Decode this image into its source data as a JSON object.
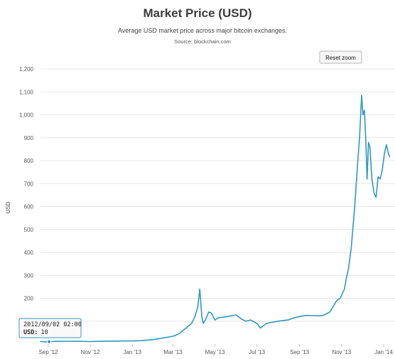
{
  "chart_data": {
    "type": "line",
    "title": "Market Price (USD)",
    "subtitle": "Average USD market price across major bitcoin exchanges.",
    "source": "Source: blockchain.com",
    "ylabel": "USD",
    "ylim": [
      0,
      1200
    ],
    "y_ticks": [
      100,
      200,
      300,
      400,
      500,
      600,
      700,
      800,
      900,
      1000,
      1100,
      1200
    ],
    "y_tick_labels": [
      "100",
      "200",
      "300",
      "400",
      "500",
      "600",
      "700",
      "800",
      "900",
      "1,000",
      "1,100",
      "1,200"
    ],
    "x_ticks": [
      "2012-09-01",
      "2012-11-01",
      "2013-01-01",
      "2013-03-01",
      "2013-05-01",
      "2013-07-01",
      "2013-09-01",
      "2013-11-01",
      "2014-01-01"
    ],
    "x_tick_labels": [
      "Sep '12",
      "Nov '12",
      "Jan '13",
      "Mar '13",
      "May '13",
      "Jul '13",
      "Sep '13",
      "Nov '13",
      "Jan '14"
    ],
    "grid": "horizontal",
    "series": [
      {
        "color": "#2f98c2",
        "points": [
          [
            "2012-08-20",
            11
          ],
          [
            "2012-08-28",
            10
          ],
          [
            "2012-09-02",
            10
          ],
          [
            "2012-09-05",
            11
          ],
          [
            "2012-09-15",
            12
          ],
          [
            "2012-10-01",
            12.5
          ],
          [
            "2012-10-15",
            12
          ],
          [
            "2012-11-01",
            11
          ],
          [
            "2012-11-15",
            12
          ],
          [
            "2012-12-01",
            12.7
          ],
          [
            "2012-12-15",
            13.3
          ],
          [
            "2013-01-01",
            13.5
          ],
          [
            "2013-01-15",
            15
          ],
          [
            "2013-02-01",
            20
          ],
          [
            "2013-02-15",
            27
          ],
          [
            "2013-03-01",
            34
          ],
          [
            "2013-03-10",
            45
          ],
          [
            "2013-03-20",
            70
          ],
          [
            "2013-03-28",
            90
          ],
          [
            "2013-04-02",
            120
          ],
          [
            "2013-04-06",
            160
          ],
          [
            "2013-04-09",
            240
          ],
          [
            "2013-04-12",
            120
          ],
          [
            "2013-04-14",
            90
          ],
          [
            "2013-04-18",
            110
          ],
          [
            "2013-04-22",
            140
          ],
          [
            "2013-04-26",
            135
          ],
          [
            "2013-05-01",
            105
          ],
          [
            "2013-05-06",
            115
          ],
          [
            "2013-05-15",
            118
          ],
          [
            "2013-06-01",
            127
          ],
          [
            "2013-06-08",
            110
          ],
          [
            "2013-06-15",
            100
          ],
          [
            "2013-06-22",
            105
          ],
          [
            "2013-07-01",
            90
          ],
          [
            "2013-07-06",
            70
          ],
          [
            "2013-07-15",
            90
          ],
          [
            "2013-07-22",
            95
          ],
          [
            "2013-08-01",
            100
          ],
          [
            "2013-08-15",
            105
          ],
          [
            "2013-08-25",
            115
          ],
          [
            "2013-09-01",
            120
          ],
          [
            "2013-09-10",
            125
          ],
          [
            "2013-09-20",
            124
          ],
          [
            "2013-10-01",
            123
          ],
          [
            "2013-10-05",
            125
          ],
          [
            "2013-10-15",
            140
          ],
          [
            "2013-10-25",
            190
          ],
          [
            "2013-10-30",
            200
          ],
          [
            "2013-11-05",
            240
          ],
          [
            "2013-11-08",
            290
          ],
          [
            "2013-11-11",
            330
          ],
          [
            "2013-11-15",
            420
          ],
          [
            "2013-11-18",
            530
          ],
          [
            "2013-11-20",
            600
          ],
          [
            "2013-11-24",
            780
          ],
          [
            "2013-11-27",
            900
          ],
          [
            "2013-11-30",
            1085
          ],
          [
            "2013-12-02",
            1000
          ],
          [
            "2013-12-04",
            1020
          ],
          [
            "2013-12-06",
            900
          ],
          [
            "2013-12-08",
            720
          ],
          [
            "2013-12-10",
            880
          ],
          [
            "2013-12-12",
            860
          ],
          [
            "2013-12-15",
            720
          ],
          [
            "2013-12-18",
            660
          ],
          [
            "2013-12-21",
            640
          ],
          [
            "2013-12-24",
            730
          ],
          [
            "2013-12-27",
            720
          ],
          [
            "2013-12-30",
            760
          ],
          [
            "2014-01-02",
            830
          ],
          [
            "2014-01-05",
            870
          ],
          [
            "2014-01-08",
            830
          ],
          [
            "2014-01-10",
            815
          ]
        ]
      }
    ]
  },
  "ui": {
    "reset_zoom_label": "Reset zoom"
  },
  "tooltip": {
    "date": "2012/09/02 02:00",
    "label": "USD:",
    "value": "10",
    "point": [
      "2012-09-02",
      10
    ]
  }
}
